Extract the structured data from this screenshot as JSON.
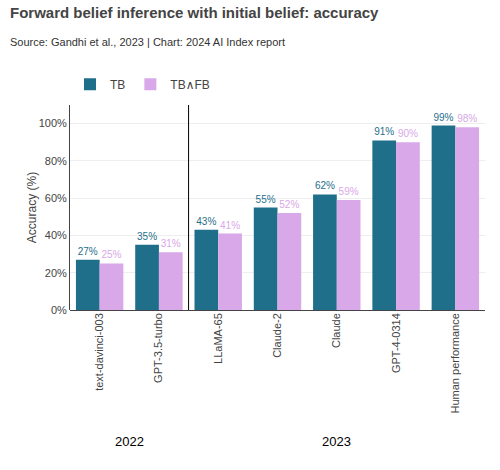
{
  "chart_data": {
    "type": "bar",
    "title": "Forward belief inference with initial belief: accuracy",
    "subtitle": "Source: Gandhi et al., 2023 | Chart: 2024 AI Index report",
    "ylabel": "Accuracy (%)",
    "categories": [
      "text-davinci-003",
      "GPT-3.5-turbo",
      "LLaMA-65",
      "Claude-2",
      "Claude",
      "GPT-4-0314",
      "Human performance"
    ],
    "series": [
      {
        "name": "TB",
        "color": "#1f6f8b",
        "values": [
          27,
          35,
          43,
          55,
          62,
          91,
          99
        ],
        "value_labels": [
          "27%",
          "35%",
          "43%",
          "55%",
          "62%",
          "91%",
          "99%"
        ]
      },
      {
        "name": "TB∧FB",
        "color": "#d9a8e8",
        "values": [
          25,
          31,
          41,
          52,
          59,
          90,
          98
        ],
        "value_labels": [
          "25%",
          "31%",
          "41%",
          "52%",
          "59%",
          "90%",
          "98%"
        ]
      }
    ],
    "data_labels": true,
    "ylim": [
      0,
      110
    ],
    "yticks": [
      {
        "value": 0,
        "label": "0%"
      },
      {
        "value": 20,
        "label": "20%"
      },
      {
        "value": 40,
        "label": "40%"
      },
      {
        "value": 60,
        "label": "60%"
      },
      {
        "value": 80,
        "label": "80%"
      },
      {
        "value": 100,
        "label": "100%"
      }
    ],
    "grid": true,
    "legend": "top",
    "annotations": [
      {
        "text": "2022",
        "from": "text-davinci-003",
        "to": "GPT-3.5-turbo"
      },
      {
        "text": "2023",
        "from": "LLaMA-65",
        "to": "Human performance"
      }
    ]
  }
}
